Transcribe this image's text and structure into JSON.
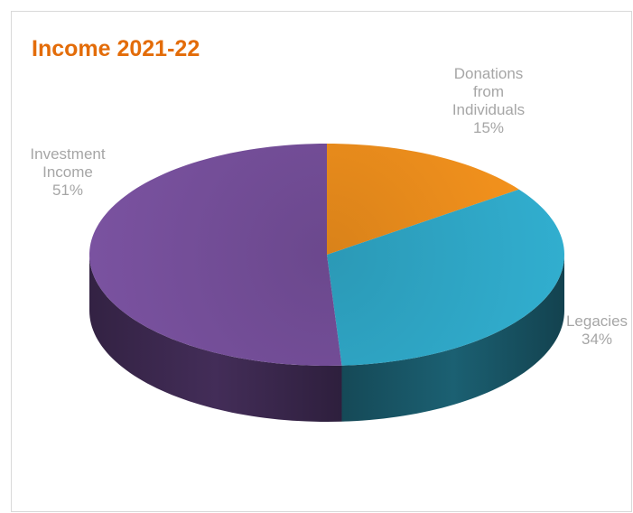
{
  "chart_data": {
    "type": "pie",
    "title": "Income 2021-22",
    "three_d": true,
    "slices": [
      {
        "label_lines": [
          "Donations",
          "from",
          "Individuals"
        ],
        "value": 15,
        "value_text": "15%",
        "color": "#f7941d"
      },
      {
        "label_lines": [
          "Legacies"
        ],
        "value": 34,
        "value_text": "34%",
        "color": "#31aecf"
      },
      {
        "label_lines": [
          "Investment",
          "Income"
        ],
        "value": 51,
        "value_text": "51%",
        "color": "#7a52a0"
      }
    ]
  },
  "colors": {
    "title": "#e36c09",
    "label_text": "#a6a6a6",
    "border": "#d9d9d9",
    "background": "#ffffff"
  }
}
